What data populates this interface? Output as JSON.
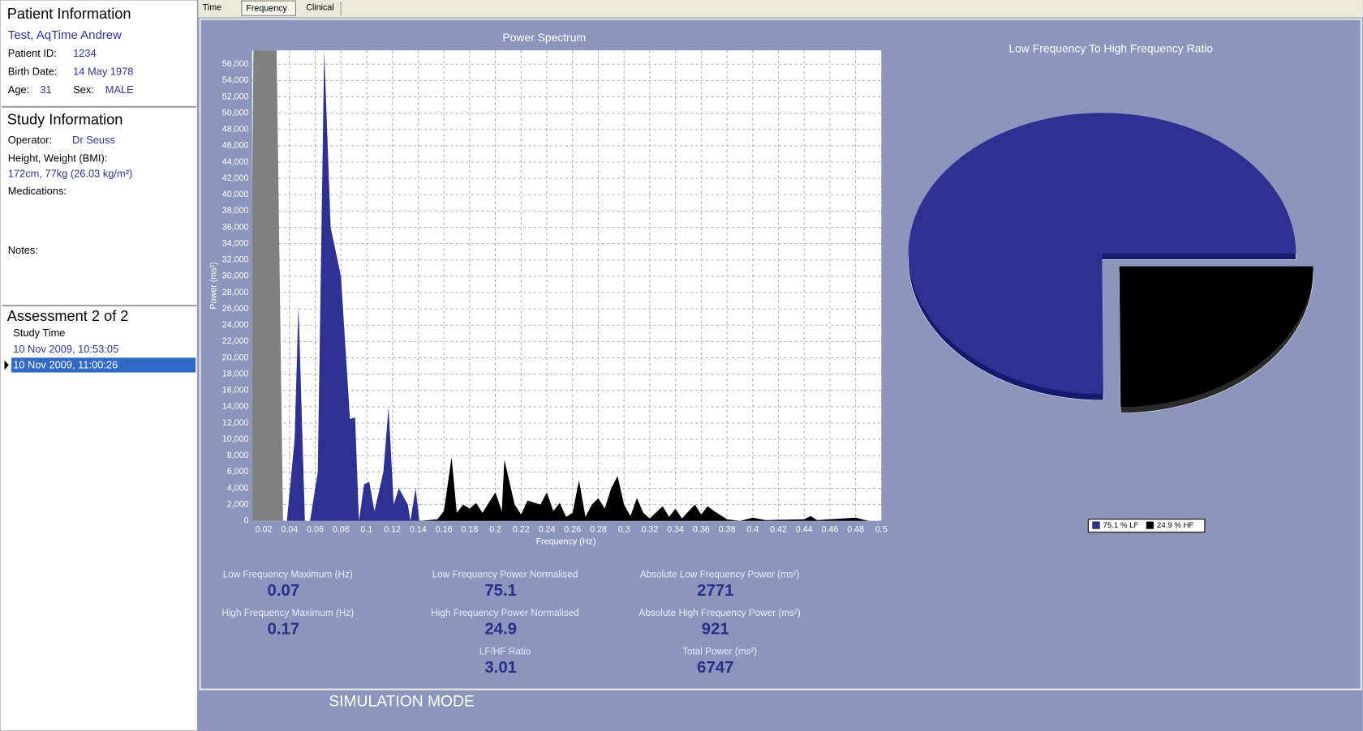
{
  "patient": {
    "title": "Patient Information",
    "name": "Test, AqTime Andrew",
    "fields": [
      {
        "label": "Patient ID:",
        "value": "1234"
      },
      {
        "label": "Birth Date:",
        "value": "14 May 1978"
      },
      {
        "label": "Age:",
        "value": "31"
      },
      {
        "label": "Sex:",
        "value": "MALE"
      }
    ]
  },
  "study": {
    "title": "Study Information",
    "operator_label": "Operator:",
    "operator": "Dr Seuss",
    "hw_label": "Height, Weight (BMI):",
    "hw": "172cm, 77kg (26.03 kg/m²)",
    "medications_label": "Medications:",
    "notes_label": "Notes:"
  },
  "assessment": {
    "title": "Assessment 2 of 2",
    "column": "Study Time",
    "rows": [
      "10 Nov 2009, 10:53:05",
      "10 Nov 2009, 11:00:26"
    ]
  },
  "tabs": [
    "Time",
    "Frequency",
    "Clinical"
  ],
  "chart_data": [
    {
      "type": "area",
      "title": "Power Spectrum",
      "x_label": "Frequency (Hz)",
      "y_label": "Power (ms²)",
      "xlim": [
        0.011,
        0.5
      ],
      "ylim": [
        0,
        57700
      ],
      "grid": true,
      "xticks": [
        0.02,
        0.04,
        0.06,
        0.08,
        0.1,
        0.12,
        0.14,
        0.16,
        0.18,
        0.2,
        0.22,
        0.24,
        0.26,
        0.28,
        0.3,
        0.32,
        0.34,
        0.36,
        0.38,
        0.4,
        0.42,
        0.44,
        0.46,
        0.48,
        0.5
      ],
      "yticks": [
        0,
        {
          "value": 2000,
          "label": "2,000"
        },
        {
          "value": 4000,
          "label": "4,000"
        },
        {
          "value": 6000,
          "label": "6,000"
        },
        {
          "value": 8000,
          "label": "8,000"
        },
        {
          "value": 10000,
          "label": "10,000"
        },
        {
          "value": 12000,
          "label": "12,000"
        },
        {
          "value": 14000,
          "label": "14,000"
        },
        {
          "value": 16000,
          "label": "16,000"
        },
        {
          "value": 18000,
          "label": "18,000"
        },
        {
          "value": 20000,
          "label": "20,000"
        },
        {
          "value": 22000,
          "label": "22,000"
        },
        {
          "value": 24000,
          "label": "24,000"
        },
        {
          "value": 26000,
          "label": "26,000"
        },
        {
          "value": 28000,
          "label": "28,000"
        },
        {
          "value": 30000,
          "label": "30,000"
        },
        {
          "value": 32000,
          "label": "32,000"
        },
        {
          "value": 34000,
          "label": "34,000"
        },
        {
          "value": 36000,
          "label": "36,000"
        },
        {
          "value": 38000,
          "label": "38,000"
        },
        {
          "value": 40000,
          "label": "40,000"
        },
        {
          "value": 42000,
          "label": "42,000"
        },
        {
          "value": 44000,
          "label": "44,000"
        },
        {
          "value": 46000,
          "label": "46,000"
        },
        {
          "value": 48000,
          "label": "48,000"
        },
        {
          "value": 50000,
          "label": "50,000"
        },
        {
          "value": 52000,
          "label": "52,000"
        },
        {
          "value": 54000,
          "label": "54,000"
        },
        {
          "value": 56000,
          "label": "56,000"
        }
      ],
      "series": [
        {
          "color": "#808080",
          "x": [
            0.011,
            0.012,
            0.02,
            0.03,
            0.035
          ],
          "values": [
            40000,
            57700,
            57700,
            57700,
            0
          ]
        },
        {
          "color": "#2e3192",
          "x": [
            0.038,
            0.044,
            0.047,
            0.052,
            0.056,
            0.062,
            0.067,
            0.072,
            0.08,
            0.087,
            0.091,
            0.094,
            0.098,
            0.102,
            0.106,
            0.113,
            0.117,
            0.121,
            0.125,
            0.132,
            0.134,
            0.138,
            0.141
          ],
          "values": [
            0,
            10000,
            26500,
            0,
            0,
            6000,
            57700,
            36000,
            30000,
            12500,
            12700,
            0,
            4500,
            4800,
            1200,
            6000,
            14000,
            2000,
            4000,
            2000,
            0,
            4000,
            0
          ]
        },
        {
          "color": "#000000",
          "x": [
            0.141,
            0.155,
            0.16,
            0.166,
            0.17,
            0.175,
            0.18,
            0.185,
            0.19,
            0.2,
            0.205,
            0.207,
            0.215,
            0.22,
            0.225,
            0.235,
            0.24,
            0.245,
            0.25,
            0.255,
            0.26,
            0.265,
            0.27,
            0.275,
            0.28,
            0.285,
            0.29,
            0.295,
            0.3,
            0.305,
            0.31,
            0.315,
            0.32,
            0.33,
            0.335,
            0.34,
            0.345,
            0.355,
            0.36,
            0.365,
            0.37,
            0.38,
            0.39,
            0.4,
            0.41,
            0.44,
            0.445,
            0.45,
            0.48,
            0.49
          ],
          "values": [
            0,
            200,
            1200,
            7800,
            1000,
            2000,
            1500,
            2200,
            1000,
            3500,
            1200,
            7500,
            2000,
            800,
            2500,
            2000,
            3500,
            1200,
            2200,
            500,
            1000,
            5000,
            500,
            2000,
            2800,
            1500,
            4000,
            5500,
            2000,
            600,
            2800,
            1000,
            300,
            1800,
            500,
            1500,
            300,
            2000,
            800,
            1800,
            1200,
            200,
            0,
            400,
            100,
            200,
            600,
            100,
            400,
            0
          ]
        }
      ]
    },
    {
      "type": "pie",
      "title": "Low Frequency To High Frequency Ratio",
      "values": [
        75.1,
        24.9
      ],
      "value_labels": [
        "75.1 % LF",
        "24.9 % HF"
      ],
      "colors": [
        "#2e3192",
        "#000000"
      ]
    }
  ],
  "metrics": [
    {
      "label": "Low Frequency Maximum (Hz)",
      "value": 0.07
    },
    {
      "label": "High Frequency Maximum (Hz)",
      "value": 0.17
    },
    {
      "label": "Low Frequency Power Normalised",
      "value": 75.1
    },
    {
      "label": "High Frequency Power Normalised",
      "value": 24.9
    },
    {
      "label": "LF/HF Ratio",
      "value": 3.01
    },
    {
      "label": "Absolute Low Frequency Power (ms²)",
      "value": 2771
    },
    {
      "label": "Absolute High Frequency Power (ms²)",
      "value": 921
    },
    {
      "label": "Total Power (ms²)",
      "value": 6747
    }
  ],
  "status": "SIMULATION MODE"
}
